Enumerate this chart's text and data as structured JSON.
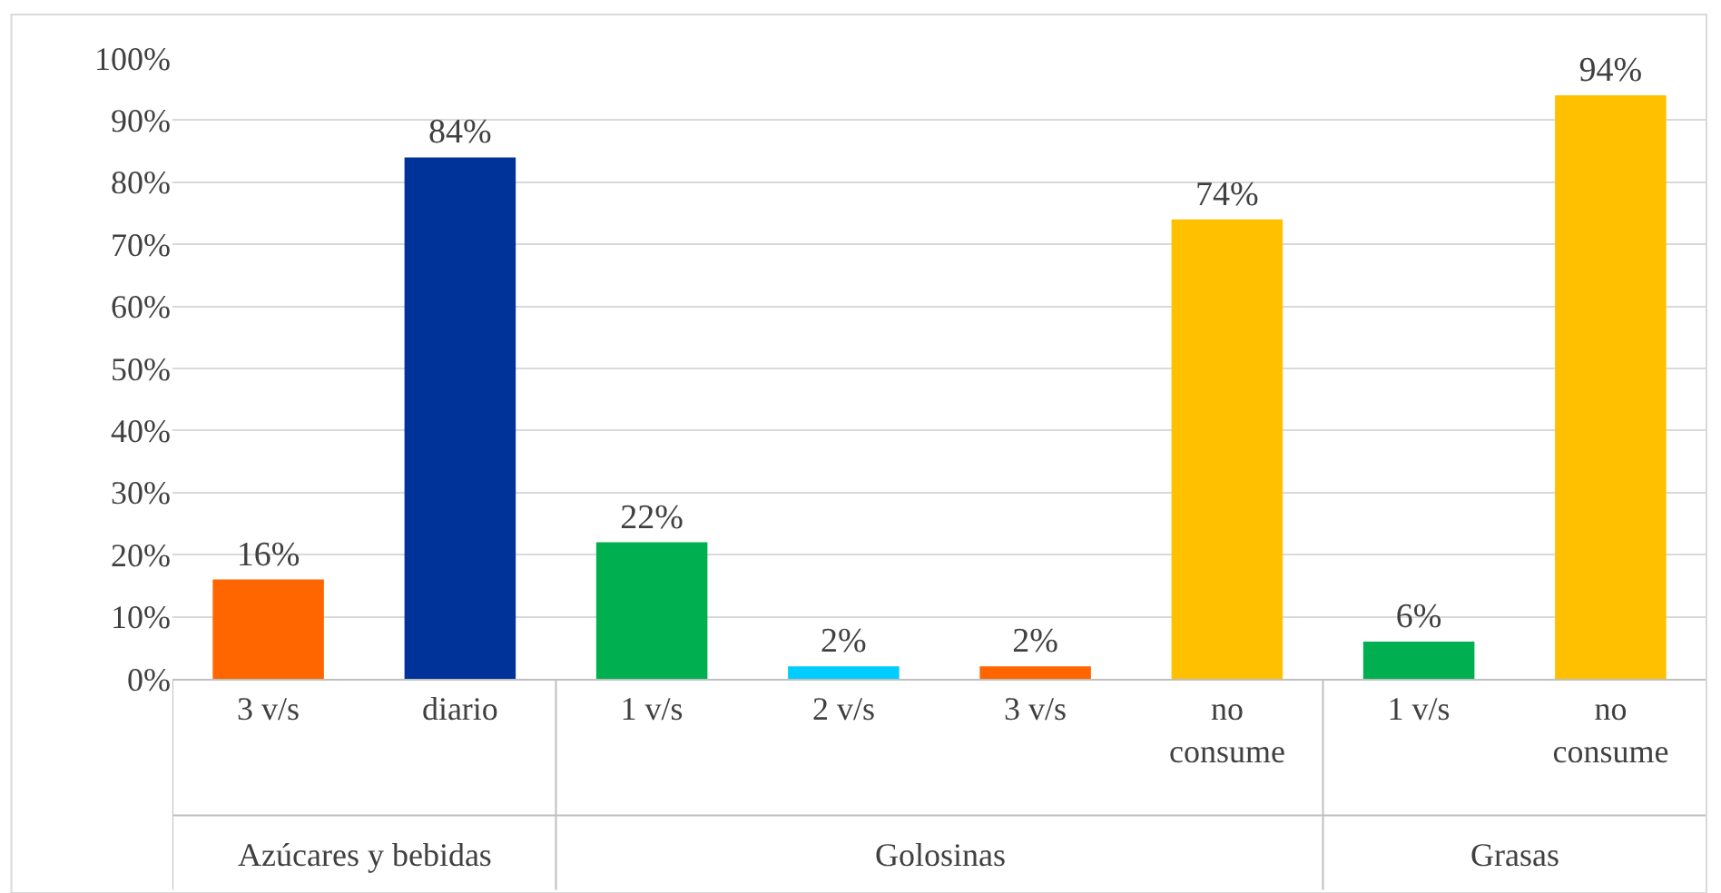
{
  "chart_data": {
    "type": "bar",
    "categories": [
      "3 v/s",
      "diario",
      "1 v/s",
      "2 v/s",
      "3 v/s",
      "no consume",
      "1 v/s",
      "no consume"
    ],
    "values": [
      16,
      84,
      22,
      2,
      2,
      74,
      6,
      94
    ],
    "colors": [
      "#ff6600",
      "#003399",
      "#00b050",
      "#00ccff",
      "#ff6600",
      "#ffc000",
      "#00b050",
      "#ffc000"
    ],
    "value_labels": [
      "16%",
      "84%",
      "22%",
      "2%",
      "2%",
      "74%",
      "6%",
      "94%"
    ],
    "ylim": [
      0,
      100
    ],
    "yticks": [
      {
        "value": 0,
        "label": "0%"
      },
      {
        "value": 10,
        "label": "10%"
      },
      {
        "value": 20,
        "label": "20%"
      },
      {
        "value": 30,
        "label": "30%"
      },
      {
        "value": 40,
        "label": "40%"
      },
      {
        "value": 50,
        "label": "50%"
      },
      {
        "value": 60,
        "label": "60%"
      },
      {
        "value": 70,
        "label": "70%"
      },
      {
        "value": 80,
        "label": "80%"
      },
      {
        "value": 90,
        "label": "90%"
      },
      {
        "value": 100,
        "label": "100%"
      }
    ],
    "annotations": [
      "Azúcares y bebidas",
      "Golosinas",
      "Grasas"
    ],
    "grid": "y",
    "legend": false
  }
}
